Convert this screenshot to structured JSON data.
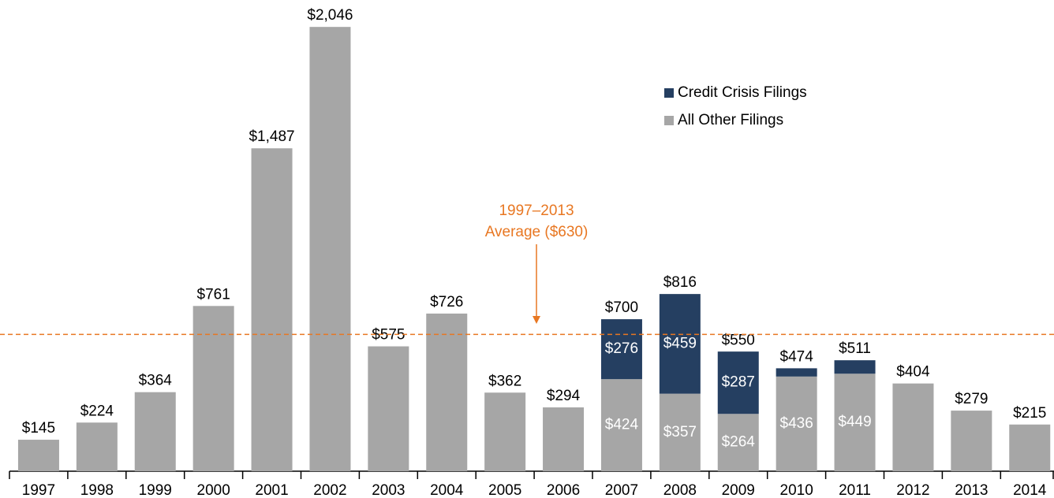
{
  "chart_data": {
    "type": "stacked_bar",
    "categories": [
      "1997",
      "1998",
      "1999",
      "2000",
      "2001",
      "2002",
      "2003",
      "2004",
      "2005",
      "2006",
      "2007",
      "2008",
      "2009",
      "2010",
      "2011",
      "2012",
      "2013",
      "2014"
    ],
    "series": [
      {
        "name": "All Other Filings",
        "color": "#a6a6a6",
        "values": [
          145,
          224,
          364,
          761,
          1487,
          2046,
          575,
          726,
          362,
          294,
          424,
          357,
          264,
          436,
          449,
          404,
          279,
          215
        ],
        "value_labels": [
          null,
          null,
          null,
          null,
          null,
          null,
          null,
          null,
          null,
          null,
          "$424",
          "$357",
          "$264",
          "$436",
          "$449",
          null,
          null,
          null
        ]
      },
      {
        "name": "Credit Crisis Filings",
        "color": "#253f61",
        "values": [
          null,
          null,
          null,
          null,
          null,
          null,
          null,
          null,
          null,
          null,
          276,
          459,
          287,
          38,
          62,
          null,
          null,
          null
        ],
        "value_labels": [
          null,
          null,
          null,
          null,
          null,
          null,
          null,
          null,
          null,
          null,
          "$276",
          "$459",
          "$287",
          null,
          null,
          null,
          null,
          null
        ]
      }
    ],
    "totals": [
      145,
      224,
      364,
      761,
      1487,
      2046,
      575,
      726,
      362,
      294,
      700,
      816,
      550,
      474,
      511,
      404,
      279,
      215
    ],
    "total_labels": [
      "$145",
      "$224",
      "$364",
      "$761",
      "$1,487",
      "$2,046",
      "$575",
      "$726",
      "$362",
      "$294",
      "$700",
      "$816",
      "$550",
      "$474",
      "$511",
      "$404",
      "$279",
      "$215"
    ],
    "average": 630,
    "average_color": "#e87722",
    "annotation": [
      "1997–2013",
      "Average ($630)"
    ],
    "ylim": [
      0,
      2170
    ],
    "legend_order": [
      1,
      0
    ]
  }
}
